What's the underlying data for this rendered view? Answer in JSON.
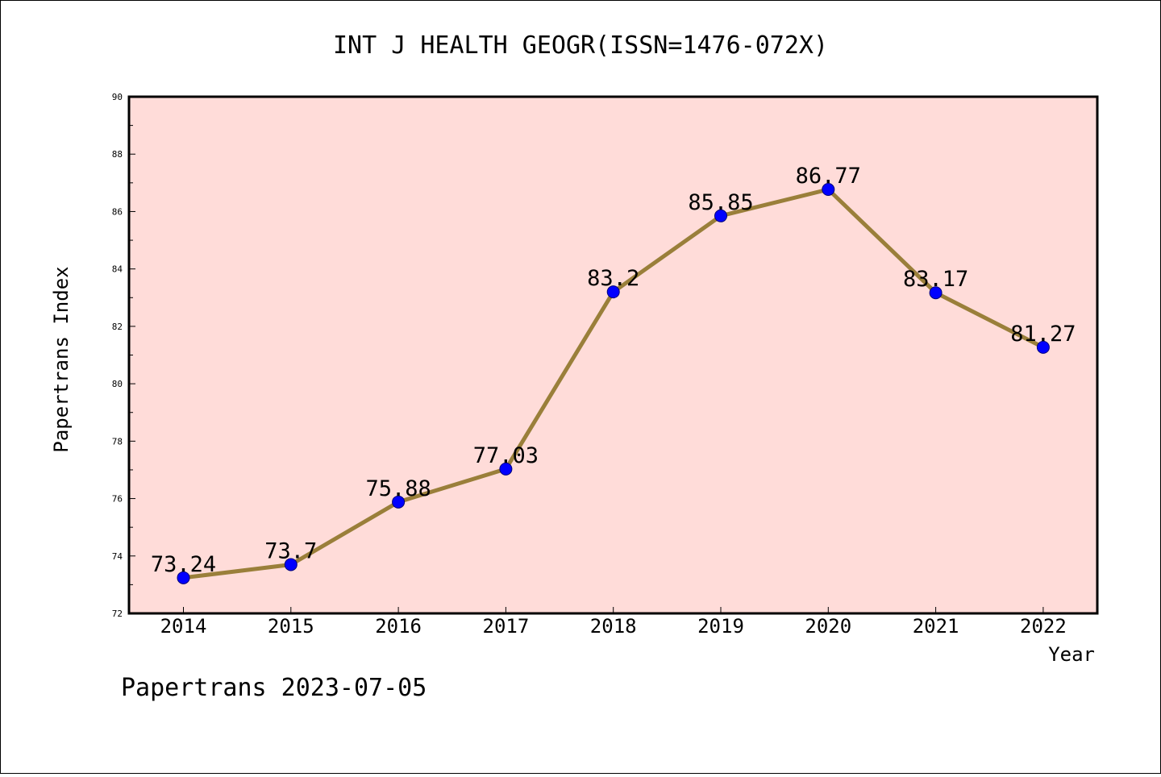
{
  "chart_data": {
    "type": "line",
    "title": "INT J HEALTH GEOGR(ISSN=1476-072X)",
    "xlabel": "Year",
    "ylabel": "Papertrans Index",
    "categories": [
      "2014",
      "2015",
      "2016",
      "2017",
      "2018",
      "2019",
      "2020",
      "2021",
      "2022"
    ],
    "series": [
      {
        "values": [
          73.24,
          73.7,
          75.88,
          77.03,
          83.2,
          85.85,
          86.77,
          83.17,
          81.27
        ],
        "labels": [
          "73.24",
          "73.7",
          "75.88",
          "77.03",
          "83.2",
          "85.85",
          "86.77",
          "83.17",
          "81.27"
        ]
      }
    ],
    "ylim": [
      72,
      90
    ],
    "yticks": [
      "72",
      "74",
      "76",
      "78",
      "80",
      "82",
      "84",
      "86",
      "88",
      "90"
    ],
    "grid": false,
    "colors": {
      "plot_background": "#FFDCD9",
      "line": "#9A7F3A",
      "marker_fill": "#0000FF",
      "marker_edge": "#00007A",
      "axis": "#000000"
    }
  },
  "footer": "Papertrans 2023-07-05"
}
